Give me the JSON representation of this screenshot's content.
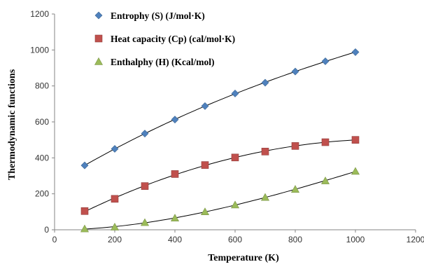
{
  "chart_data": {
    "type": "scatter",
    "title": "",
    "xlabel": "Temperature (K)",
    "ylabel": "Thermodynamic functions",
    "xlim": [
      0,
      1200
    ],
    "ylim": [
      0,
      1200
    ],
    "xticks": [
      "0",
      "200",
      "400",
      "600",
      "800",
      "1000",
      "1200"
    ],
    "yticks": [
      "0",
      "200",
      "400",
      "600",
      "800",
      "1000",
      "1200"
    ],
    "grid": false,
    "legend_position": "top-left",
    "trendline": true,
    "series": [
      {
        "name": "Entrophy   (S) (J/mol·K)",
        "marker": "diamond",
        "color": "#4f81bd",
        "x": [
          100,
          200,
          300,
          400,
          500,
          600,
          700,
          800,
          900,
          1000
        ],
        "values": [
          358,
          450,
          535,
          613,
          688,
          758,
          818,
          880,
          937,
          988
        ]
      },
      {
        "name": "Heat capacity  (Cp)  (cal/mol·K)",
        "marker": "square",
        "color": "#c0504d",
        "x": [
          100,
          200,
          300,
          400,
          500,
          600,
          700,
          800,
          900,
          1000
        ],
        "values": [
          104,
          172,
          243,
          310,
          360,
          402,
          435,
          466,
          487,
          500
        ]
      },
      {
        "name": "Enthalphy   (H)  (Kcal/mol)",
        "marker": "triangle",
        "color": "#9bbb59",
        "x": [
          100,
          200,
          300,
          400,
          500,
          600,
          700,
          800,
          900,
          1000
        ],
        "values": [
          5,
          15,
          40,
          65,
          100,
          138,
          180,
          225,
          272,
          325
        ]
      }
    ]
  }
}
